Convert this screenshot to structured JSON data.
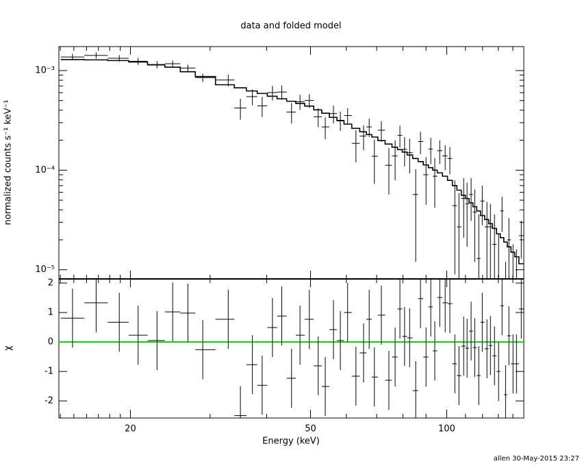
{
  "chart_data": {
    "type": "fit",
    "title": "data and folded model",
    "ylabel": "normalized counts s⁻¹ keV⁻¹",
    "xlabel": "Energy (keV)",
    "residual_ylabel": "χ",
    "footer": "allen 30-May-2015 23:27",
    "log_x": true,
    "log_y": true,
    "xlim": [
      13.9,
      148
    ],
    "xticks": [
      20,
      50,
      100
    ],
    "xminor_ticks": [
      14,
      15,
      16,
      17,
      18,
      19,
      30,
      40,
      60,
      70,
      80,
      90,
      110,
      120,
      130,
      140
    ],
    "ylim": [
      8.1e-06,
      0.00174
    ],
    "yticks": [
      {
        "value": 1e-05,
        "label": "10⁻⁵"
      },
      {
        "value": 0.0001,
        "label": "10⁻⁴"
      },
      {
        "value": 0.001,
        "label": "10⁻³"
      }
    ],
    "yminor_ticks": [
      2e-05,
      3e-05,
      4e-05,
      5e-05,
      6e-05,
      7e-05,
      8e-05,
      9e-05,
      0.0002,
      0.0003,
      0.0004,
      0.0005,
      0.0006,
      0.0007,
      0.0008,
      0.0009
    ],
    "color": "#000000",
    "x": [
      14.9,
      16.8,
      18.9,
      20.8,
      22.9,
      24.8,
      26.8,
      28.9,
      32.9,
      35.0,
      37.2,
      39.1,
      41.2,
      43.2,
      45.4,
      47.4,
      49.7,
      52.0,
      53.9,
      56.2,
      58.2,
      60.4,
      63.0,
      65.5,
      67.4,
      69.2,
      71.7,
      74.5,
      76.9,
      78.8,
      80.7,
      82.8,
      85.4,
      87.5,
      90.0,
      92.2,
      94.1,
      96.5,
      99.2,
      101.6,
      104.2,
      106.4,
      109.0,
      110.9,
      113.2,
      115.3,
      117.7,
      119.8,
      122.7,
      124.9,
      127.5,
      130.2,
      132.5,
      134.9,
      137.2,
      140.1,
      142.6,
      146.1
    ],
    "values": [
      0.00137,
      0.00142,
      0.00133,
      0.00124,
      0.00115,
      0.00117,
      0.00106,
      0.00085,
      0.000804,
      0.000421,
      0.000547,
      0.000442,
      0.000601,
      0.000609,
      0.000383,
      0.000487,
      0.000501,
      0.000344,
      0.000272,
      0.00037,
      0.000317,
      0.000354,
      0.000186,
      0.00022,
      0.000272,
      0.000138,
      0.000252,
      0.000112,
      0.000139,
      0.000224,
      0.000162,
      0.00015,
      5.7e-05,
      0.000194,
      9e-05,
      0.000163,
      8.7e-05,
      0.000157,
      0.000139,
      0.000131,
      4.4e-05,
      2.7e-05,
      5.2e-05,
      4.6e-05,
      5.7e-05,
      3.8e-05,
      1.3e-05,
      4.9e-05,
      2.7e-05,
      2.7e-05,
      1.8e-05,
      7e-06,
      3.9e-05,
      2e-06,
      2e-05,
      7e-06,
      6e-06,
      2.2e-05
    ],
    "errors": [
      0.000103,
      0.000102,
      0.0001,
      0.0001,
      9.5e-05,
      9e-05,
      8.5e-05,
      8e-05,
      0.000108,
      0.0001,
      0.0001,
      0.0001,
      0.0001,
      0.0001,
      8.9e-05,
      8.4e-05,
      7.9e-05,
      7.3e-05,
      6.7e-05,
      7.5e-05,
      6.9e-05,
      6.4e-05,
      6.6e-05,
      6.1e-05,
      5.7e-05,
      6.5e-05,
      5.9e-05,
      5.5e-05,
      6e-05,
      5.6e-05,
      5.3e-05,
      5.7e-05,
      4.5e-05,
      4.9e-05,
      4.5e-05,
      4.8e-05,
      4.5e-05,
      4.2e-05,
      3.9e-05,
      4e-05,
      3.5e-05,
      3.2e-05,
      3.1e-05,
      2.9e-05,
      2.6e-05,
      2.6e-05,
      2.3e-05,
      2.1e-05,
      2.1e-05,
      1.9e-05,
      1.8e-05,
      1.6e-05,
      1.5e-05,
      1e-05,
      1.3e-05,
      1.1e-05,
      1e-05,
      9e-06
    ],
    "model": [
      0.00129,
      0.00128,
      0.00126,
      0.00122,
      0.00114,
      0.00108,
      0.000973,
      0.000871,
      0.000721,
      0.000671,
      0.000624,
      0.000589,
      0.000552,
      0.000521,
      0.000492,
      0.000468,
      0.00044,
      0.000403,
      0.000373,
      0.000339,
      0.000314,
      0.00029,
      0.000263,
      0.000243,
      0.000228,
      0.000215,
      0.000198,
      0.000183,
      0.00017,
      0.000161,
      0.000152,
      0.000142,
      0.000131,
      0.000122,
      0.000113,
      0.000106,
      0.0001,
      9.4e-05,
      8.7e-05,
      7.9e-05,
      7e-05,
      6.3e-05,
      5.6e-05,
      5.2e-05,
      4.7e-05,
      4.3e-05,
      3.9e-05,
      3.5e-05,
      3.2e-05,
      2.9e-05,
      2.6e-05,
      2.3e-05,
      2.1e-05,
      1.9e-05,
      1.7e-05,
      1.5e-05,
      1.35e-05,
      1.15e-05
    ],
    "residuals": [
      0.81,
      1.33,
      0.67,
      0.23,
      0.05,
      1.02,
      0.98,
      -0.26,
      0.77,
      -2.5,
      -0.77,
      -1.47,
      0.49,
      0.88,
      -1.23,
      0.23,
      0.77,
      -0.81,
      -1.51,
      0.42,
      0.05,
      1.0,
      -1.16,
      -0.37,
      0.77,
      -1.19,
      0.91,
      -1.3,
      -0.51,
      1.12,
      0.19,
      0.14,
      -1.65,
      1.47,
      -0.51,
      1.19,
      -0.3,
      1.51,
      1.33,
      1.3,
      -0.74,
      -1.14,
      -0.14,
      -0.21,
      0.37,
      -0.19,
      -1.14,
      0.67,
      -0.23,
      -0.12,
      -0.47,
      -1.0,
      1.23,
      -1.79,
      0.21,
      -0.74,
      -0.74,
      1.12
    ],
    "residual_errors": [
      1,
      1,
      1,
      1,
      1,
      1,
      1,
      1,
      1,
      1,
      1,
      1,
      1,
      1,
      1,
      1,
      1,
      1,
      1,
      1,
      1,
      1,
      1,
      1,
      1,
      1,
      1,
      1,
      1,
      1,
      1,
      1,
      1,
      1,
      1,
      1,
      1,
      1,
      1,
      1,
      1,
      1,
      1,
      1,
      1,
      1,
      1,
      1,
      1,
      1,
      1,
      1,
      1,
      1,
      1,
      1,
      1,
      1
    ],
    "residual_ylim": [
      -2.58,
      2.14
    ],
    "residual_yticks": [
      -2,
      -1,
      0,
      1,
      2
    ],
    "reference_line": {
      "value": 0,
      "color": "#00e000"
    }
  }
}
